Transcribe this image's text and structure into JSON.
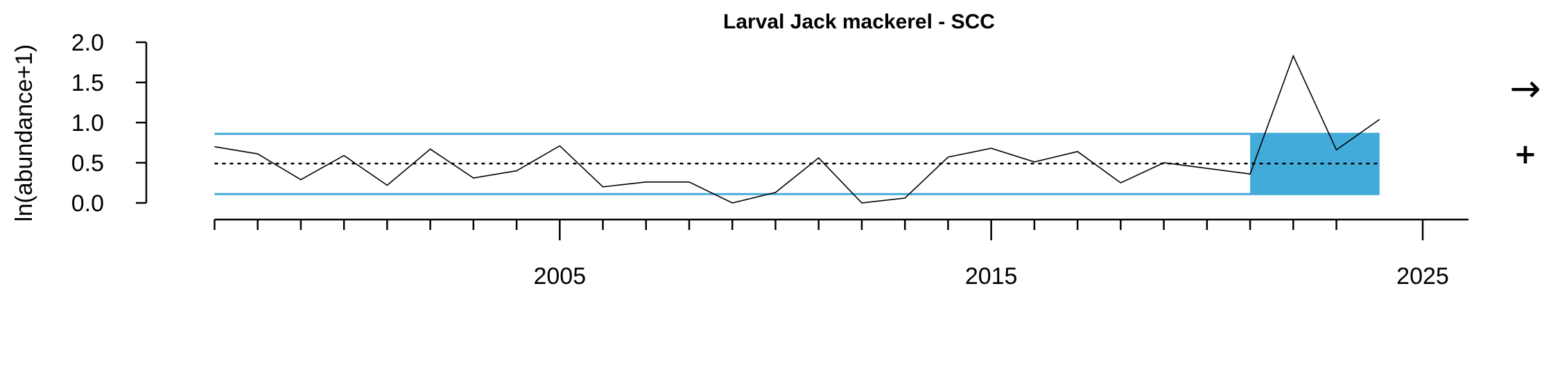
{
  "chart_data": {
    "type": "line",
    "title": "Larval Jack mackerel - SCC",
    "xlabel": "",
    "ylabel": "ln(abundance+1)",
    "xlim": [
      1996.8,
      2025
    ],
    "ylim": [
      0,
      2
    ],
    "y_ticks": [
      "0.0",
      "0.5",
      "1.0",
      "1.5",
      "2.0"
    ],
    "x_tick_labels": [
      "2005",
      "2015",
      "2025"
    ],
    "x_major_ticks": [
      2005,
      2015,
      2025
    ],
    "x_minor_ticks": [
      1997,
      1998,
      1999,
      2000,
      2001,
      2002,
      2003,
      2004,
      2006,
      2007,
      2008,
      2009,
      2010,
      2011,
      2012,
      2013,
      2014,
      2016,
      2017,
      2018,
      2019,
      2020,
      2021,
      2022,
      2023
    ],
    "x": [
      1997,
      1998,
      1999,
      2000,
      2001,
      2002,
      2003,
      2004,
      2005,
      2006,
      2007,
      2008,
      2009,
      2010,
      2011,
      2012,
      2013,
      2014,
      2015,
      2016,
      2017,
      2018,
      2019,
      2020,
      2021,
      2022,
      2023,
      2024
    ],
    "values": [
      0.7,
      0.61,
      0.29,
      0.59,
      0.22,
      0.67,
      0.31,
      0.4,
      0.71,
      0.2,
      0.26,
      0.26,
      0.0,
      0.13,
      0.56,
      0.0,
      0.06,
      0.57,
      0.68,
      0.51,
      0.64,
      0.25,
      0.5,
      0.43,
      0.36,
      1.83,
      0.66,
      1.04
    ],
    "mean": 0.49,
    "band_lower": 0.11,
    "band_upper": 0.86,
    "recent_window": [
      2021,
      2024
    ],
    "colors": {
      "line": "#000000",
      "band": "#43abd9",
      "mean": "#000000"
    },
    "trend_symbol": "→",
    "mean_symbol": "+"
  }
}
